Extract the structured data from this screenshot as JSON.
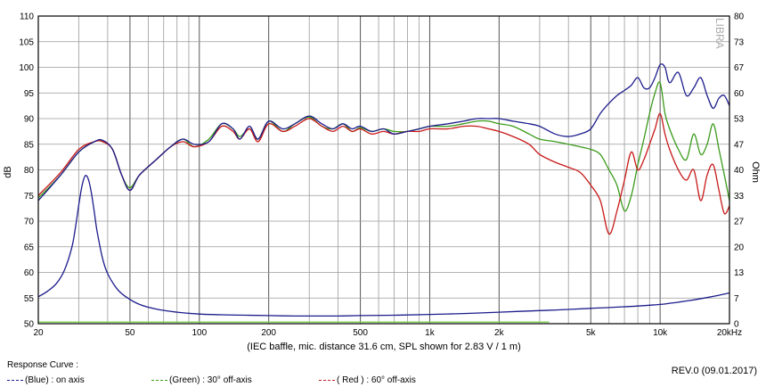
{
  "chart_data": {
    "type": "line",
    "xlabel": "(IEC baffle, mic. distance 31.6 cm, SPL shown for 2.83 V / 1 m)",
    "ylabel": "dB",
    "ylabel_right": "Ohm",
    "x_scale": "log",
    "xlim": [
      20,
      20000
    ],
    "ylim": [
      50,
      110
    ],
    "ylim_right": [
      0,
      80
    ],
    "x_ticks": [
      20,
      50,
      100,
      200,
      500,
      1000,
      2000,
      5000,
      10000,
      20000
    ],
    "x_tick_labels": [
      "20",
      "50",
      "100",
      "200",
      "500",
      "1k",
      "2k",
      "5k",
      "10k",
      "20kHz"
    ],
    "y_ticks": [
      50,
      55,
      60,
      65,
      70,
      75,
      80,
      85,
      90,
      95,
      100,
      105,
      110
    ],
    "y_ticks_right": [
      0,
      7,
      13,
      20,
      27,
      33,
      40,
      47,
      53,
      60,
      67,
      73,
      80
    ],
    "grid": true,
    "watermark": "LIBRA",
    "series": [
      {
        "name": "on axis",
        "legend_label": "(Blue) : on axis",
        "color": "#1c1c8c",
        "x": [
          20,
          25,
          30,
          35,
          38,
          42,
          46,
          50,
          55,
          65,
          75,
          85,
          95,
          110,
          125,
          140,
          150,
          165,
          180,
          200,
          230,
          260,
          300,
          340,
          380,
          420,
          460,
          500,
          560,
          630,
          700,
          800,
          900,
          1000,
          1200,
          1400,
          1600,
          1800,
          2000,
          2300,
          2700,
          3000,
          3500,
          4000,
          4500,
          5000,
          5500,
          6000,
          6500,
          7000,
          7500,
          8000,
          8500,
          9000,
          9500,
          10000,
          10500,
          11000,
          12000,
          13000,
          14000,
          15000,
          16000,
          17000,
          18000,
          19000,
          20000
        ],
        "values": [
          74,
          79,
          83.5,
          85.5,
          85.8,
          84,
          79,
          76,
          79,
          82,
          84.5,
          86,
          85,
          85.5,
          89,
          88,
          86,
          88.5,
          86,
          89.5,
          88,
          89,
          90.5,
          89,
          88,
          89,
          88,
          88.5,
          87.5,
          88,
          87,
          87.5,
          88,
          88.5,
          89,
          89.5,
          90,
          90,
          90,
          89.5,
          89,
          88.5,
          87,
          86.5,
          87,
          88,
          91,
          93,
          94.5,
          95.5,
          96.5,
          98,
          96,
          96,
          98,
          100.5,
          100,
          97,
          99,
          94.5,
          96,
          98,
          94.5,
          92,
          94,
          94.5,
          92.5
        ]
      },
      {
        "name": "30° off-axis",
        "legend_label": "(Green) : 30° off-axis",
        "color": "#3a9a1a",
        "x": [
          20,
          25,
          30,
          35,
          38,
          42,
          46,
          50,
          55,
          65,
          75,
          85,
          95,
          110,
          125,
          140,
          150,
          165,
          180,
          200,
          230,
          260,
          300,
          340,
          380,
          420,
          460,
          500,
          560,
          630,
          700,
          800,
          900,
          1000,
          1200,
          1400,
          1600,
          1800,
          2000,
          2300,
          2700,
          3000,
          3500,
          4000,
          4500,
          5000,
          5500,
          6000,
          6500,
          7000,
          7500,
          8000,
          8500,
          9000,
          9500,
          10000,
          10500,
          11000,
          12000,
          13000,
          14000,
          15000,
          16000,
          17000,
          18000,
          19000,
          20000
        ],
        "values": [
          74.5,
          79,
          83.5,
          85.5,
          85.6,
          84,
          79,
          76.5,
          79,
          82,
          84.5,
          86,
          84.5,
          86,
          89,
          88,
          86.5,
          88,
          86,
          89.5,
          87.5,
          89,
          90.3,
          88.5,
          88,
          89,
          87.5,
          88.2,
          87.5,
          88,
          87.5,
          87.5,
          88,
          88.5,
          88.5,
          89,
          89.5,
          89.5,
          89,
          88.5,
          87,
          86,
          85.5,
          85,
          84.5,
          84,
          83,
          80,
          77,
          72,
          75,
          81,
          86,
          91,
          95,
          97,
          91,
          88,
          84,
          82,
          87,
          83,
          85,
          89,
          84,
          79,
          74
        ]
      },
      {
        "name": "60° off-axis",
        "legend_label": "( Red ) : 60° off-axis",
        "color": "#c81818",
        "x": [
          20,
          25,
          30,
          35,
          38,
          42,
          46,
          50,
          55,
          65,
          75,
          85,
          95,
          110,
          125,
          140,
          150,
          165,
          180,
          200,
          230,
          260,
          300,
          340,
          380,
          420,
          460,
          500,
          560,
          630,
          700,
          800,
          900,
          1000,
          1200,
          1400,
          1600,
          1800,
          2000,
          2300,
          2700,
          3000,
          3500,
          4000,
          4500,
          5000,
          5500,
          6000,
          6500,
          7000,
          7500,
          8000,
          8500,
          9000,
          9500,
          10000,
          10500,
          11000,
          12000,
          13000,
          14000,
          15000,
          16000,
          17000,
          18000,
          19000,
          20000
        ],
        "values": [
          75,
          79.5,
          84,
          85.5,
          85.5,
          84,
          79,
          76,
          79,
          82,
          84.5,
          85.5,
          84.5,
          85.5,
          88.5,
          87.5,
          86,
          88,
          85.5,
          89,
          87.5,
          88.5,
          90,
          88.5,
          87.5,
          88.5,
          87.5,
          88,
          87,
          87.5,
          87,
          87.5,
          87.5,
          88,
          88,
          88.5,
          88.5,
          88,
          87.5,
          86.5,
          85,
          83,
          81.5,
          80.5,
          79.5,
          77,
          74,
          67.5,
          72,
          78,
          83.5,
          80,
          82,
          85,
          88,
          91,
          87,
          84,
          80,
          78,
          80,
          74,
          79,
          81,
          76,
          71.5,
          73
        ]
      },
      {
        "name": "impedance",
        "color": "#1c1c8c",
        "axis": "right",
        "x": [
          20,
          22,
          24,
          26,
          28,
          29,
          30,
          31,
          32,
          33,
          34,
          35,
          36,
          38,
          40,
          44,
          48,
          55,
          65,
          80,
          100,
          130,
          160,
          200,
          260,
          330,
          400,
          500,
          700,
          1000,
          1500,
          2000,
          3000,
          4000,
          5000,
          6000,
          7000,
          8000,
          9000,
          10000,
          11000,
          12000,
          14000,
          16000,
          18000,
          20000
        ],
        "values": [
          7,
          8.5,
          10.5,
          14,
          20,
          25,
          31,
          36,
          38.5,
          37.5,
          34,
          29,
          24,
          17,
          13,
          9,
          7,
          5,
          3.8,
          3,
          2.5,
          2.3,
          2.2,
          2.1,
          2,
          2,
          2,
          2.1,
          2.2,
          2.4,
          2.7,
          3,
          3.4,
          3.7,
          4,
          4.2,
          4.4,
          4.6,
          4.8,
          5,
          5.3,
          5.6,
          6.2,
          6.8,
          7.4,
          8
        ]
      },
      {
        "name": "floor",
        "color": "#88d060",
        "x": [
          20,
          3300
        ],
        "values": [
          50.3,
          50.3
        ]
      }
    ]
  },
  "legend": {
    "title": "Response Curve :",
    "revision": "REV.0 (09.01.2017)"
  }
}
